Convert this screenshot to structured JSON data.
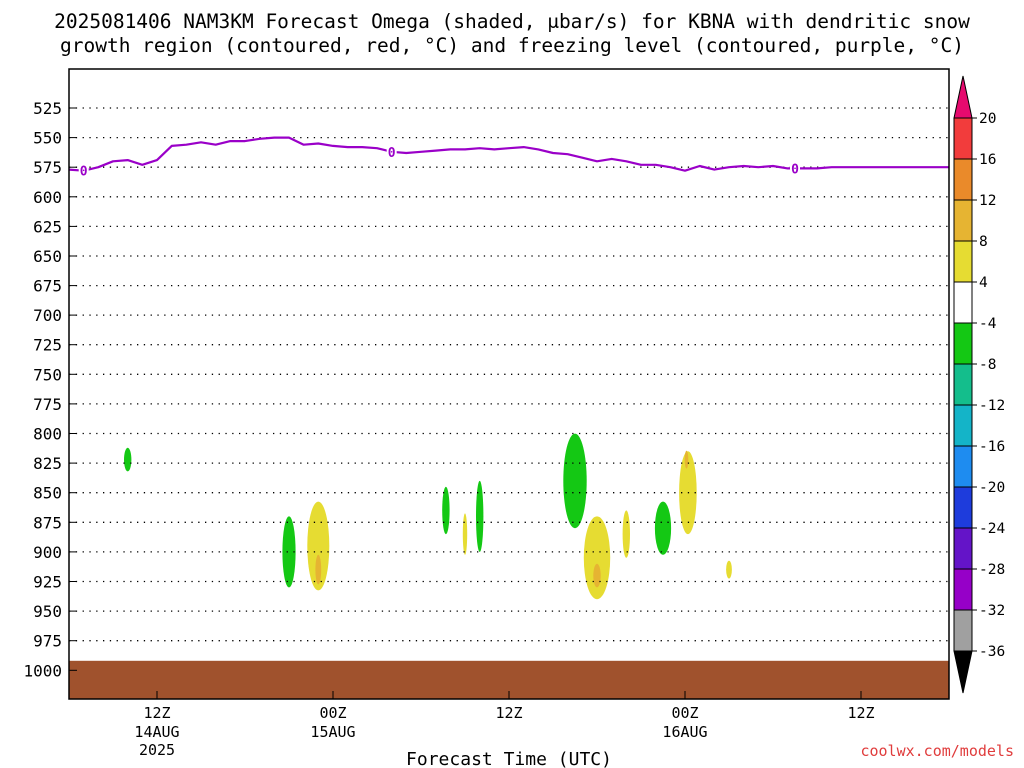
{
  "title_line1": "2025081406 NAM3KM Forecast Omega (shaded, μbar/s) for KBNA with dendritic snow",
  "title_line2": "growth region (contoured, red, °C) and freezing level (contoured, purple, °C)",
  "x_axis_label": "Forecast Time (UTC)",
  "credit": "coolwx.com/models",
  "credit_color": "#e03c3c",
  "chart_data": {
    "type": "heatmap",
    "title": "2025081406 NAM3KM Forecast Omega (shaded, μbar/s) for KBNA with dendritic snow growth region (contoured, red, °C) and freezing level (contoured, purple, °C)",
    "xlabel": "Forecast Time (UTC)",
    "ylabel": "",
    "x_unit": "hours since 2025-08-14 06Z",
    "xlim": [
      0,
      60
    ],
    "ylim": [
      1000,
      500
    ],
    "y_ticks": [
      525,
      550,
      575,
      600,
      625,
      650,
      675,
      700,
      725,
      750,
      775,
      800,
      825,
      850,
      875,
      900,
      925,
      950,
      975,
      1000
    ],
    "x_ticks": [
      {
        "x": 6,
        "label": "12Z",
        "sub1": "14AUG",
        "sub2": "2025"
      },
      {
        "x": 18,
        "label": "00Z",
        "sub1": "15AUG",
        "sub2": ""
      },
      {
        "x": 30,
        "label": "12Z",
        "sub1": "",
        "sub2": ""
      },
      {
        "x": 42,
        "label": "00Z",
        "sub1": "16AUG",
        "sub2": ""
      },
      {
        "x": 54,
        "label": "12Z",
        "sub1": "",
        "sub2": ""
      }
    ],
    "grid": true,
    "colorbar": {
      "unit": "μbar/s",
      "labels": [
        "20",
        "16",
        "12",
        "8",
        "4",
        "-4",
        "-8",
        "-12",
        "-16",
        "-20",
        "-24",
        "-28",
        "-32",
        "-36"
      ],
      "colors": [
        "#e60a6e",
        "#f23c3c",
        "#ea8a2a",
        "#e6b432",
        "#e6dc32",
        "#ffffff",
        "#14c814",
        "#14be8c",
        "#14b4c8",
        "#1e8cf0",
        "#1e3cdc",
        "#6414c8",
        "#9600c8",
        "#a0a0a0",
        "#000000"
      ]
    },
    "freezing_level": {
      "label": "0",
      "color": "#9a00c8",
      "x": [
        0,
        1,
        2,
        3,
        4,
        5,
        6,
        7,
        8,
        9,
        10,
        11,
        12,
        13,
        14,
        15,
        16,
        17,
        18,
        19,
        20,
        21,
        22,
        23,
        24,
        25,
        26,
        27,
        28,
        29,
        30,
        31,
        32,
        33,
        34,
        35,
        36,
        37,
        38,
        39,
        40,
        41,
        42,
        43,
        44,
        45,
        46,
        47,
        48,
        49,
        50,
        51,
        52,
        53,
        54,
        55,
        56,
        57,
        58,
        59,
        60
      ],
      "p": [
        577,
        578,
        575,
        570,
        569,
        573,
        569,
        557,
        556,
        554,
        556,
        553,
        553,
        551,
        550,
        550,
        556,
        555,
        557,
        558,
        558,
        559,
        562,
        563,
        562,
        561,
        560,
        560,
        559,
        560,
        559,
        558,
        560,
        563,
        564,
        567,
        570,
        568,
        570,
        573,
        573,
        575,
        578,
        574,
        577,
        575,
        574,
        575,
        574,
        576,
        576,
        576,
        575,
        575,
        575,
        575,
        575,
        575,
        575,
        575,
        575
      ],
      "label_x": [
        1,
        22,
        49.5
      ]
    },
    "omega_patches": [
      {
        "x": 4.0,
        "p": 822,
        "dx": 0.25,
        "dp": 20,
        "value": -6
      },
      {
        "x": 15.0,
        "p": 900,
        "dx": 0.45,
        "dp": 60,
        "value": -6
      },
      {
        "x": 17.0,
        "p": 895,
        "dx": 0.75,
        "dp": 75,
        "value": 6
      },
      {
        "x": 17.0,
        "p": 915,
        "dx": 0.2,
        "dp": 25,
        "value": 10
      },
      {
        "x": 25.7,
        "p": 865,
        "dx": 0.25,
        "dp": 40,
        "value": -6
      },
      {
        "x": 27.0,
        "p": 885,
        "dx": 0.15,
        "dp": 35,
        "value": 6
      },
      {
        "x": 28.0,
        "p": 870,
        "dx": 0.25,
        "dp": 60,
        "value": -6
      },
      {
        "x": 34.5,
        "p": 840,
        "dx": 0.8,
        "dp": 80,
        "value": -6
      },
      {
        "x": 36.0,
        "p": 905,
        "dx": 0.9,
        "dp": 70,
        "value": 6
      },
      {
        "x": 36.0,
        "p": 920,
        "dx": 0.25,
        "dp": 20,
        "value": 10
      },
      {
        "x": 38.0,
        "p": 885,
        "dx": 0.25,
        "dp": 40,
        "value": 6
      },
      {
        "x": 40.5,
        "p": 880,
        "dx": 0.55,
        "dp": 45,
        "value": -6
      },
      {
        "x": 42.2,
        "p": 850,
        "dx": 0.6,
        "dp": 70,
        "value": 6
      },
      {
        "x": 42.1,
        "p": 822,
        "dx": 0.12,
        "dp": 15,
        "value": 10
      },
      {
        "x": 45.0,
        "p": 915,
        "dx": 0.2,
        "dp": 15,
        "value": 6
      }
    ],
    "terrain": {
      "color": "#a0522d",
      "surface_p": 992
    }
  }
}
